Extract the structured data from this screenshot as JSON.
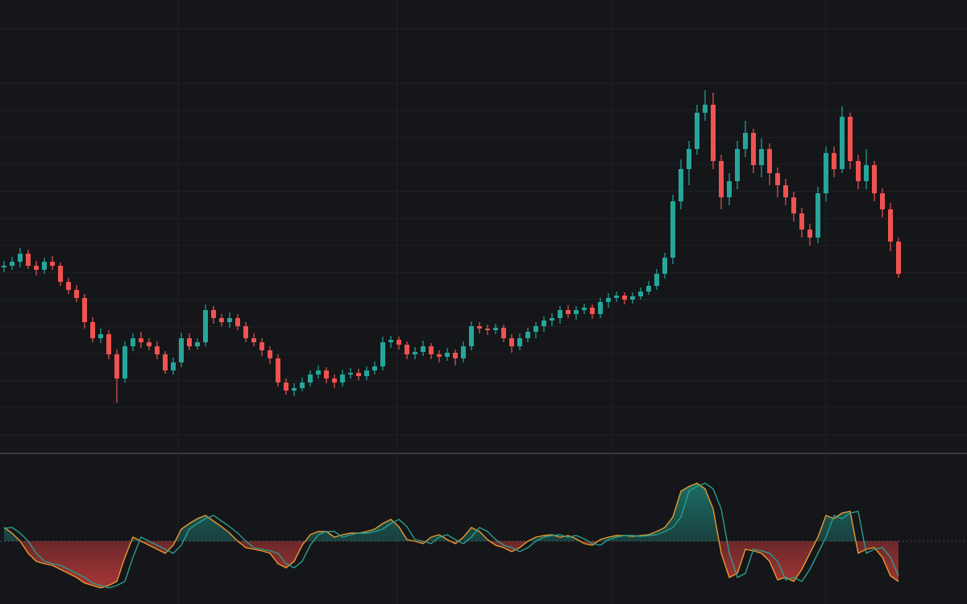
{
  "chart_data": [
    {
      "type": "candlestick",
      "up_color": "#26a69a",
      "down_color": "#ef5350",
      "ylim": [
        0,
        560
      ],
      "grid": true,
      "open": [
        228,
        230,
        235,
        245,
        230,
        225,
        235,
        230,
        210,
        200,
        190,
        160,
        140,
        145,
        120,
        90,
        130,
        140,
        135,
        130,
        120,
        100,
        110,
        140,
        130,
        135,
        175,
        165,
        160,
        165,
        155,
        140,
        135,
        125,
        115,
        85,
        75,
        78,
        85,
        95,
        100,
        90,
        85,
        95,
        97,
        93,
        100,
        105,
        135,
        138,
        132,
        120,
        123,
        130,
        120,
        117,
        122,
        115,
        130,
        155,
        152,
        150,
        153,
        140,
        130,
        140,
        148,
        155,
        162,
        165,
        175,
        170,
        175,
        178,
        170,
        185,
        190,
        193,
        188,
        192,
        198,
        205,
        220,
        240,
        310,
        350,
        375,
        420,
        430,
        360,
        315,
        335,
        375,
        395,
        355,
        375,
        345,
        330,
        315,
        295,
        275,
        265,
        320,
        370,
        350,
        415,
        360,
        335,
        355,
        320,
        300,
        260
      ],
      "high": [
        236,
        241,
        252,
        250,
        236,
        240,
        242,
        234,
        215,
        206,
        195,
        166,
        152,
        150,
        126,
        136,
        146,
        148,
        140,
        136,
        124,
        116,
        147,
        146,
        140,
        182,
        180,
        170,
        172,
        170,
        160,
        146,
        140,
        130,
        120,
        90,
        84,
        91,
        100,
        106,
        104,
        95,
        101,
        103,
        102,
        105,
        111,
        142,
        143,
        142,
        136,
        129,
        137,
        134,
        125,
        128,
        126,
        136,
        161,
        160,
        157,
        158,
        157,
        145,
        146,
        153,
        160,
        167,
        171,
        180,
        181,
        180,
        183,
        182,
        190,
        196,
        198,
        197,
        197,
        203,
        211,
        226,
        246,
        318,
        362,
        385,
        430,
        448,
        445,
        368,
        345,
        385,
        410,
        400,
        388,
        382,
        352,
        338,
        322,
        302,
        282,
        328,
        378,
        378,
        428,
        420,
        368,
        375,
        360,
        326,
        308,
        265
      ],
      "low": [
        222,
        225,
        228,
        226,
        218,
        220,
        225,
        205,
        195,
        185,
        152,
        135,
        134,
        114,
        60,
        85,
        124,
        128,
        125,
        114,
        96,
        95,
        104,
        125,
        126,
        130,
        158,
        155,
        153,
        150,
        135,
        130,
        118,
        108,
        80,
        70,
        68,
        74,
        80,
        90,
        84,
        78,
        80,
        90,
        88,
        88,
        95,
        100,
        128,
        126,
        114,
        114,
        118,
        114,
        110,
        112,
        106,
        110,
        125,
        146,
        144,
        145,
        135,
        122,
        125,
        135,
        140,
        148,
        155,
        158,
        165,
        163,
        170,
        164,
        165,
        178,
        185,
        182,
        183,
        188,
        194,
        200,
        214,
        232,
        300,
        330,
        368,
        410,
        350,
        300,
        305,
        325,
        365,
        345,
        340,
        330,
        315,
        305,
        285,
        265,
        255,
        258,
        310,
        340,
        345,
        350,
        325,
        325,
        310,
        290,
        248,
        215
      ],
      "close": [
        230,
        235,
        245,
        230,
        225,
        235,
        230,
        210,
        200,
        190,
        160,
        140,
        145,
        120,
        90,
        130,
        140,
        135,
        130,
        120,
        100,
        110,
        140,
        130,
        135,
        175,
        165,
        160,
        165,
        155,
        140,
        135,
        125,
        115,
        85,
        75,
        78,
        85,
        95,
        100,
        90,
        85,
        95,
        97,
        93,
        100,
        105,
        135,
        138,
        132,
        120,
        123,
        130,
        120,
        117,
        122,
        115,
        130,
        155,
        152,
        150,
        153,
        140,
        130,
        140,
        148,
        155,
        162,
        165,
        175,
        170,
        175,
        178,
        170,
        185,
        190,
        193,
        188,
        192,
        198,
        205,
        220,
        240,
        310,
        350,
        375,
        420,
        430,
        360,
        315,
        335,
        375,
        395,
        355,
        375,
        345,
        330,
        315,
        295,
        275,
        265,
        320,
        370,
        350,
        415,
        360,
        335,
        355,
        320,
        300,
        260,
        220
      ]
    },
    {
      "type": "line",
      "ylim": [
        -78,
        107
      ],
      "zero_line": true,
      "up_fill": "#1f8a80",
      "down_fill": "#d9403f",
      "series": [
        {
          "color": "#e89a2c",
          "values": [
            17,
            10,
            0,
            -15,
            -25,
            -28,
            -30,
            -35,
            -40,
            -45,
            -52,
            -55,
            -58,
            -55,
            -50,
            -20,
            5,
            0,
            -5,
            -10,
            -15,
            -5,
            15,
            22,
            28,
            32,
            25,
            18,
            10,
            0,
            -8,
            -10,
            -12,
            -15,
            -28,
            -33,
            -25,
            -5,
            8,
            12,
            12,
            5,
            8,
            10,
            10,
            12,
            15,
            22,
            27,
            18,
            2,
            0,
            -3,
            5,
            8,
            2,
            -3,
            5,
            17,
            12,
            2,
            -5,
            -8,
            -13,
            -8,
            0,
            5,
            7,
            8,
            5,
            7,
            3,
            -3,
            -5,
            2,
            5,
            7,
            7,
            6,
            7,
            8,
            12,
            17,
            30,
            62,
            68,
            72,
            65,
            40,
            -15,
            -45,
            -40,
            -10,
            -12,
            -15,
            -25,
            -48,
            -45,
            -50,
            -35,
            -15,
            5,
            32,
            28,
            35,
            37,
            -15,
            -10,
            -8,
            -20,
            -43,
            -50
          ]
        },
        {
          "color": "#2a9d8f",
          "values": [
            16,
            17,
            10,
            0,
            -15,
            -25,
            -28,
            -30,
            -35,
            -40,
            -45,
            -52,
            -55,
            -58,
            -55,
            -50,
            -20,
            5,
            0,
            -5,
            -10,
            -15,
            -5,
            15,
            22,
            28,
            32,
            25,
            18,
            10,
            0,
            -8,
            -10,
            -12,
            -15,
            -28,
            -33,
            -25,
            -5,
            8,
            12,
            12,
            5,
            8,
            10,
            10,
            12,
            15,
            22,
            27,
            18,
            2,
            0,
            -3,
            5,
            8,
            2,
            -3,
            5,
            17,
            12,
            2,
            -5,
            -8,
            -13,
            -8,
            0,
            5,
            7,
            8,
            5,
            7,
            3,
            -3,
            -5,
            2,
            5,
            7,
            7,
            6,
            7,
            8,
            12,
            17,
            30,
            62,
            68,
            72,
            65,
            40,
            -15,
            -45,
            -40,
            -10,
            -12,
            -15,
            -25,
            -48,
            -45,
            -50,
            -35,
            -15,
            5,
            32,
            28,
            35,
            37,
            -15,
            -10,
            -8,
            -20,
            -43
          ]
        }
      ]
    }
  ]
}
